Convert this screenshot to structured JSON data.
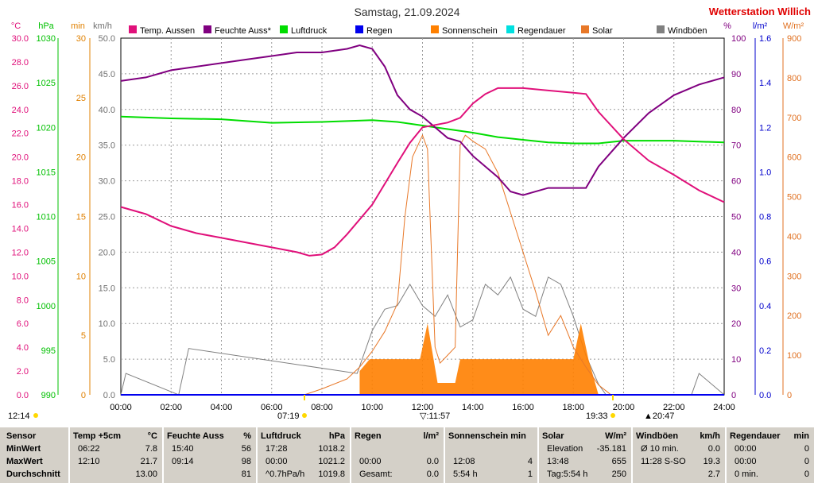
{
  "title": "Samstag, 21.09.2024",
  "station": "Wetterstation Willich",
  "axis_units": {
    "temp": "°C",
    "press": "hPa",
    "min": "min",
    "kmh": "km/h",
    "pct": "%",
    "rain": "l/m²",
    "solar": "W/m²"
  },
  "legend": [
    {
      "label": "Temp. Aussen",
      "color": "#e0107a"
    },
    {
      "label": "Feuchte Auss*",
      "color": "#800080"
    },
    {
      "label": "Luftdruck",
      "color": "#00dd00"
    },
    {
      "label": "Regen",
      "color": "#0000ee"
    },
    {
      "label": "Sonnenschein",
      "color": "#ff8000"
    },
    {
      "label": "Regendauer",
      "color": "#00e0e0"
    },
    {
      "label": "Solar",
      "color": "#e87828"
    },
    {
      "label": "Windböen",
      "color": "#808080"
    }
  ],
  "markers": {
    "left": "12:14",
    "sunrise": "07:19",
    "noon": "11:57",
    "sunset": "19:33",
    "right": "20:47"
  },
  "chart_data": {
    "type": "line",
    "title": "Samstag, 21.09.2024",
    "x_ticks": [
      "00:00",
      "02:00",
      "04:00",
      "06:00",
      "08:00",
      "10:00",
      "12:00",
      "14:00",
      "16:00",
      "18:00",
      "20:00",
      "22:00",
      "24:00"
    ],
    "axes": {
      "temp": {
        "min": 0,
        "max": 30,
        "ticks": [
          "0.0",
          "2.0",
          "4.0",
          "6.0",
          "8.0",
          "10.0",
          "12.0",
          "14.0",
          "16.0",
          "18.0",
          "20.0",
          "22.0",
          "24.0",
          "26.0",
          "28.0",
          "30.0"
        ]
      },
      "pressure": {
        "min": 990,
        "max": 1030,
        "ticks": [
          "990",
          "995",
          "1000",
          "1005",
          "1010",
          "1015",
          "1020",
          "1025",
          "1030"
        ]
      },
      "minutes": {
        "min": 0,
        "max": 30,
        "ticks": [
          "0",
          "5",
          "10",
          "15",
          "20",
          "25",
          "30"
        ]
      },
      "wind": {
        "min": 0,
        "max": 50,
        "ticks": [
          "0.0",
          "5.0",
          "10.0",
          "15.0",
          "20.0",
          "25.0",
          "30.0",
          "35.0",
          "40.0",
          "45.0",
          "50.0"
        ]
      },
      "humidity": {
        "min": 0,
        "max": 100,
        "ticks": [
          "0",
          "10",
          "20",
          "30",
          "40",
          "50",
          "60",
          "70",
          "80",
          "90",
          "100"
        ]
      },
      "rain": {
        "min": 0,
        "max": 1.6,
        "ticks": [
          "0.0",
          "0.2",
          "0.4",
          "0.6",
          "0.8",
          "1.0",
          "1.2",
          "1.4",
          "1.6"
        ]
      },
      "solar": {
        "min": 0,
        "max": 900,
        "ticks": [
          "0",
          "100",
          "200",
          "300",
          "400",
          "500",
          "600",
          "700",
          "800",
          "900"
        ]
      }
    },
    "series": [
      {
        "name": "Temp. Aussen",
        "color": "#e0107a",
        "axis": "temp",
        "x": [
          0,
          1,
          2,
          3,
          4,
          5,
          6,
          7,
          7.5,
          8,
          8.5,
          9,
          10,
          11,
          11.5,
          12,
          12.5,
          13,
          13.5,
          14,
          14.5,
          15,
          16,
          17,
          18,
          18.5,
          19,
          20,
          21,
          22,
          23,
          24
        ],
        "y": [
          15.8,
          15.2,
          14.2,
          13.6,
          13.2,
          12.8,
          12.4,
          12.0,
          11.7,
          11.8,
          12.4,
          13.5,
          16.0,
          19.5,
          21.2,
          22.5,
          22.7,
          22.9,
          23.3,
          24.5,
          25.3,
          25.8,
          25.8,
          25.6,
          25.4,
          25.3,
          23.8,
          21.5,
          19.7,
          18.5,
          17.2,
          16.2
        ]
      },
      {
        "name": "Feuchte Auss*",
        "color": "#800080",
        "axis": "humidity",
        "x": [
          0,
          1,
          2,
          3,
          4,
          5,
          6,
          7,
          8,
          9,
          9.5,
          10,
          10.5,
          11,
          11.5,
          12,
          12.5,
          13,
          13.5,
          14,
          15,
          15.5,
          16,
          16.5,
          17,
          18,
          18.5,
          19,
          19.5,
          20,
          21,
          22,
          23,
          24
        ],
        "y": [
          88,
          89,
          91,
          92,
          93,
          94,
          95,
          96,
          96,
          97,
          98,
          97,
          92,
          84,
          80,
          78,
          75,
          72,
          71,
          67,
          61,
          57,
          56,
          57,
          58,
          58,
          58,
          64,
          68,
          72,
          79,
          84,
          87,
          89
        ]
      },
      {
        "name": "Luftdruck",
        "color": "#00dd00",
        "axis": "pressure",
        "x": [
          0,
          2,
          4,
          6,
          8,
          10,
          11,
          12,
          13,
          14,
          15,
          16,
          17,
          18,
          19,
          20,
          21,
          22,
          23,
          24
        ],
        "y": [
          1021.2,
          1021.0,
          1020.9,
          1020.5,
          1020.6,
          1020.8,
          1020.6,
          1020.2,
          1019.8,
          1019.4,
          1018.9,
          1018.6,
          1018.3,
          1018.2,
          1018.2,
          1018.5,
          1018.5,
          1018.5,
          1018.4,
          1018.3
        ]
      },
      {
        "name": "Solar",
        "color": "#e87828",
        "axis": "solar",
        "x": [
          7.3,
          8,
          9,
          9.5,
          10,
          10.5,
          11,
          11.3,
          11.6,
          12,
          12.2,
          12.5,
          12.7,
          13,
          13.3,
          13.5,
          13.7,
          14,
          14.5,
          15,
          15.5,
          16,
          16.5,
          17,
          17.5,
          18,
          18.5,
          19,
          19.5
        ],
        "y": [
          0,
          15,
          40,
          70,
          110,
          160,
          230,
          450,
          600,
          655,
          620,
          120,
          80,
          100,
          120,
          630,
          655,
          640,
          620,
          560,
          460,
          360,
          260,
          150,
          200,
          120,
          70,
          25,
          0
        ]
      },
      {
        "name": "Windböen",
        "color": "#808080",
        "axis": "wind",
        "x": [
          0,
          0.2,
          2.3,
          2.7,
          9.4,
          10,
          10.5,
          11,
          11.5,
          12,
          12.5,
          13,
          13.5,
          14,
          14.5,
          15,
          15.5,
          16,
          16.5,
          17,
          17.5,
          18,
          18.5,
          19,
          19.3,
          22.7,
          23,
          24
        ],
        "y": [
          0,
          3.0,
          0,
          6.5,
          3.0,
          9.0,
          12.0,
          12.5,
          15.5,
          12.5,
          11.0,
          14.0,
          9.5,
          10.5,
          15.5,
          14.0,
          16.5,
          12.0,
          11.0,
          16.5,
          15.5,
          11.0,
          5.5,
          1.5,
          0,
          0,
          3.0,
          0
        ]
      },
      {
        "name": "Sonnenschein",
        "color": "#ff8000",
        "axis": "minutes",
        "x": [
          9.5,
          9.9,
          11.9,
          12.2,
          12.6,
          13.3,
          13.5,
          14.0,
          15.0,
          16.0,
          17.0,
          18.0,
          18.3,
          18.6,
          19.0
        ],
        "y": [
          2,
          3,
          3,
          6,
          1,
          1,
          3,
          3,
          3,
          3,
          3,
          3,
          6,
          3,
          0
        ]
      },
      {
        "name": "Regen",
        "color": "#0000ee",
        "axis": "rain",
        "x": [
          0,
          24
        ],
        "y": [
          0,
          0
        ]
      }
    ]
  },
  "stats": {
    "sensor": {
      "h": "Sensor",
      "rows": [
        "MinWert",
        "MaxWert",
        "Durchschnitt"
      ]
    },
    "temp": {
      "h": "Temp +5cm",
      "u": "°C",
      "rows": [
        [
          "06:22",
          "7.8"
        ],
        [
          "12:10",
          "21.7"
        ],
        [
          "",
          "13.00"
        ]
      ]
    },
    "hum": {
      "h": "Feuchte Auss",
      "u": "%",
      "rows": [
        [
          "15:40",
          "56"
        ],
        [
          "09:14",
          "98"
        ],
        [
          "",
          "81"
        ]
      ]
    },
    "press": {
      "h": "Luftdruck",
      "u": "hPa",
      "rows": [
        [
          "17:28",
          "1018.2"
        ],
        [
          "00:00",
          "1021.2"
        ],
        [
          "^0.7hPa/h",
          "1019.8"
        ]
      ]
    },
    "rain": {
      "h": "Regen",
      "u": "l/m²",
      "rows": [
        [
          "",
          ""
        ],
        [
          "00:00",
          "0.0"
        ],
        [
          "Gesamt:",
          "0.0"
        ]
      ]
    },
    "sun": {
      "h": "Sonnenschein min",
      "u": "",
      "rows": [
        [
          "",
          ""
        ],
        [
          "12:08",
          "4"
        ],
        [
          "5:54 h",
          "1"
        ]
      ]
    },
    "solar": {
      "h": "Solar",
      "u": "W/m²",
      "rows": [
        [
          "Elevation",
          "-35.181"
        ],
        [
          "13:48",
          "655"
        ],
        [
          "Tag:5:54 h",
          "250"
        ]
      ]
    },
    "wind": {
      "h": "Windböen",
      "u": "km/h",
      "rows": [
        [
          "Ø 10 min.",
          "0.0"
        ],
        [
          "11:28  S-SO",
          "19.3"
        ],
        [
          "",
          "2.7"
        ]
      ]
    },
    "rdur": {
      "h": "Regendauer",
      "u": "min",
      "rows": [
        [
          "00:00",
          "0"
        ],
        [
          "00:00",
          "0"
        ],
        [
          "0 min.",
          "0"
        ]
      ]
    }
  }
}
